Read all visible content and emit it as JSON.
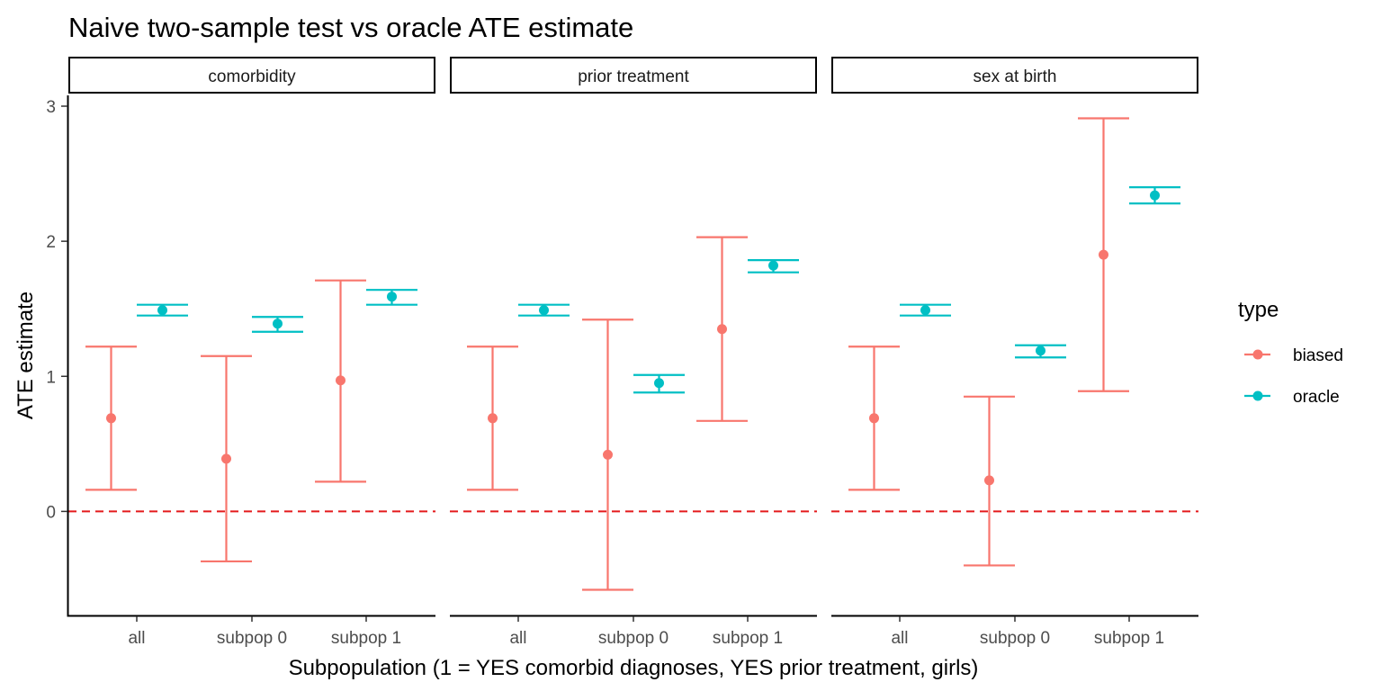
{
  "chart_data": {
    "type": "errorbar",
    "title": "Naive two-sample test vs oracle ATE estimate",
    "xlabel": "Subpopulation (1 = YES comorbid diagnoses, YES prior treatment, girls)",
    "ylabel": "ATE estimate",
    "categories": [
      "all",
      "subpop 0",
      "subpop 1"
    ],
    "ylim": [
      -0.77,
      3.08
    ],
    "yticks": [
      0,
      1,
      2,
      3
    ],
    "reference_line": {
      "y": 0,
      "color": "#e41a1c",
      "style": "dashed"
    },
    "grid": false,
    "legend": {
      "title": "type",
      "position": "right",
      "entries": [
        {
          "key": "biased",
          "label": "biased",
          "color": "#F8766D"
        },
        {
          "key": "oracle",
          "label": "oracle",
          "color": "#00BFC4"
        }
      ]
    },
    "panels": [
      {
        "label": "comorbidity",
        "series": [
          {
            "name": "biased",
            "points": [
              {
                "category": "all",
                "y": 0.69,
                "low": 0.16,
                "high": 1.22
              },
              {
                "category": "subpop 0",
                "y": 0.39,
                "low": -0.37,
                "high": 1.15
              },
              {
                "category": "subpop 1",
                "y": 0.97,
                "low": 0.22,
                "high": 1.71
              }
            ]
          },
          {
            "name": "oracle",
            "points": [
              {
                "category": "all",
                "y": 1.49,
                "low": 1.45,
                "high": 1.53
              },
              {
                "category": "subpop 0",
                "y": 1.39,
                "low": 1.33,
                "high": 1.44
              },
              {
                "category": "subpop 1",
                "y": 1.59,
                "low": 1.53,
                "high": 1.64
              }
            ]
          }
        ]
      },
      {
        "label": "prior treatment",
        "series": [
          {
            "name": "biased",
            "points": [
              {
                "category": "all",
                "y": 0.69,
                "low": 0.16,
                "high": 1.22
              },
              {
                "category": "subpop 0",
                "y": 0.42,
                "low": -0.58,
                "high": 1.42
              },
              {
                "category": "subpop 1",
                "y": 1.35,
                "low": 0.67,
                "high": 2.03
              }
            ]
          },
          {
            "name": "oracle",
            "points": [
              {
                "category": "all",
                "y": 1.49,
                "low": 1.45,
                "high": 1.53
              },
              {
                "category": "subpop 0",
                "y": 0.95,
                "low": 0.88,
                "high": 1.01
              },
              {
                "category": "subpop 1",
                "y": 1.82,
                "low": 1.77,
                "high": 1.86
              }
            ]
          }
        ]
      },
      {
        "label": "sex at birth",
        "series": [
          {
            "name": "biased",
            "points": [
              {
                "category": "all",
                "y": 0.69,
                "low": 0.16,
                "high": 1.22
              },
              {
                "category": "subpop 0",
                "y": 0.23,
                "low": -0.4,
                "high": 0.85
              },
              {
                "category": "subpop 1",
                "y": 1.9,
                "low": 0.89,
                "high": 2.91
              }
            ]
          },
          {
            "name": "oracle",
            "points": [
              {
                "category": "all",
                "y": 1.49,
                "low": 1.45,
                "high": 1.53
              },
              {
                "category": "subpop 0",
                "y": 1.19,
                "low": 1.14,
                "high": 1.23
              },
              {
                "category": "subpop 1",
                "y": 2.34,
                "low": 2.28,
                "high": 2.4
              }
            ]
          }
        ]
      }
    ]
  }
}
